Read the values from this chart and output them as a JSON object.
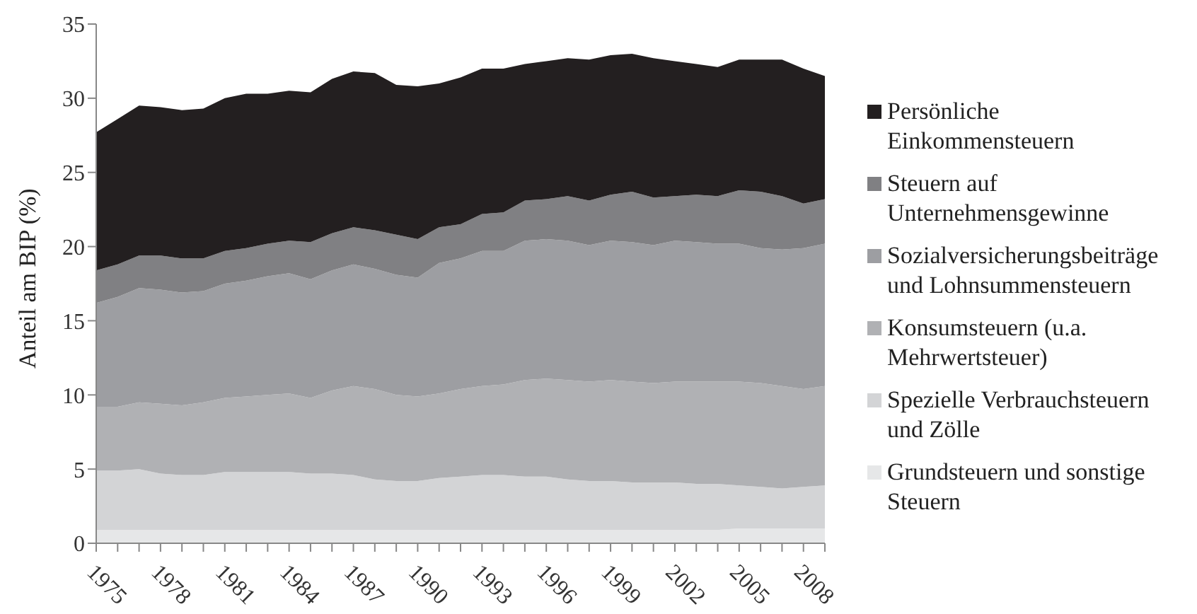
{
  "chart_data": {
    "type": "area",
    "stacked": true,
    "ylabel": "Anteil am BIP (%)",
    "legend": "right",
    "grid": false,
    "x": [
      1975,
      1976,
      1977,
      1978,
      1979,
      1980,
      1981,
      1982,
      1983,
      1984,
      1985,
      1986,
      1987,
      1988,
      1989,
      1990,
      1991,
      1992,
      1993,
      1994,
      1995,
      1996,
      1997,
      1998,
      1999,
      2000,
      2001,
      2002,
      2003,
      2004,
      2005,
      2006,
      2007,
      2008,
      2009
    ],
    "xlim": [
      1975,
      2009
    ],
    "xticks": [
      1975,
      {
        "value": 1976,
        "label": null
      },
      {
        "value": 1977,
        "label": null
      },
      1978,
      {
        "value": 1979,
        "label": null
      },
      {
        "value": 1980,
        "label": null
      },
      1981,
      {
        "value": 1982,
        "label": null
      },
      {
        "value": 1983,
        "label": null
      },
      1984,
      {
        "value": 1985,
        "label": null
      },
      {
        "value": 1986,
        "label": null
      },
      1987,
      {
        "value": 1988,
        "label": null
      },
      {
        "value": 1989,
        "label": null
      },
      1990,
      {
        "value": 1991,
        "label": null
      },
      {
        "value": 1992,
        "label": null
      },
      1993,
      {
        "value": 1994,
        "label": null
      },
      {
        "value": 1995,
        "label": null
      },
      1996,
      {
        "value": 1997,
        "label": null
      },
      {
        "value": 1998,
        "label": null
      },
      1999,
      {
        "value": 2000,
        "label": null
      },
      {
        "value": 2001,
        "label": null
      },
      2002,
      {
        "value": 2003,
        "label": null
      },
      {
        "value": 2004,
        "label": null
      },
      2005,
      {
        "value": 2006,
        "label": null
      },
      {
        "value": 2007,
        "label": null
      },
      2008,
      {
        "value": 2009,
        "label": null
      }
    ],
    "ylim": [
      0,
      35
    ],
    "yticks": [
      0,
      5,
      10,
      15,
      20,
      25,
      30,
      35
    ],
    "series": [
      {
        "name": "Grundsteuern und sonstige Steuern",
        "color": "#e6e7e8",
        "values": [
          0.9,
          0.9,
          0.9,
          0.9,
          0.9,
          0.9,
          0.9,
          0.9,
          0.9,
          0.9,
          0.9,
          0.9,
          0.9,
          0.9,
          0.9,
          0.9,
          0.9,
          0.9,
          0.9,
          0.9,
          0.9,
          0.9,
          0.9,
          0.9,
          0.9,
          0.9,
          0.9,
          0.9,
          0.9,
          0.9,
          1.0,
          1.0,
          1.0,
          1.0,
          1.0
        ]
      },
      {
        "name": "Spezielle Verbrauchsteuern und Zölle",
        "color": "#d3d4d6",
        "values": [
          4.0,
          4.0,
          4.1,
          3.8,
          3.7,
          3.7,
          3.9,
          3.9,
          3.9,
          3.9,
          3.8,
          3.8,
          3.7,
          3.4,
          3.3,
          3.3,
          3.5,
          3.6,
          3.7,
          3.7,
          3.6,
          3.6,
          3.4,
          3.3,
          3.3,
          3.2,
          3.2,
          3.2,
          3.1,
          3.1,
          2.9,
          2.8,
          2.7,
          2.8,
          2.9
        ]
      },
      {
        "name": "Konsumsteuern (u.a. Mehrwertsteuer)",
        "color": "#b0b1b4",
        "values": [
          4.3,
          4.3,
          4.5,
          4.7,
          4.7,
          4.9,
          5.0,
          5.1,
          5.2,
          5.3,
          5.1,
          5.6,
          6.0,
          6.1,
          5.8,
          5.7,
          5.7,
          5.9,
          6.0,
          6.1,
          6.5,
          6.6,
          6.7,
          6.7,
          6.8,
          6.8,
          6.7,
          6.8,
          6.9,
          6.9,
          7.0,
          7.0,
          6.9,
          6.6,
          6.7
        ]
      },
      {
        "name": "Sozialversicherungsbeiträge und Lohnsummensteuern",
        "color": "#9d9ea2",
        "values": [
          7.0,
          7.4,
          7.7,
          7.7,
          7.6,
          7.5,
          7.7,
          7.8,
          8.0,
          8.1,
          8.0,
          8.1,
          8.2,
          8.1,
          8.1,
          8.0,
          8.8,
          8.8,
          9.1,
          9.0,
          9.4,
          9.4,
          9.4,
          9.2,
          9.4,
          9.4,
          9.3,
          9.5,
          9.4,
          9.3,
          9.3,
          9.1,
          9.2,
          9.5,
          9.6
        ]
      },
      {
        "name": "Steuern auf Unternehmensgewinne",
        "color": "#808083",
        "values": [
          2.2,
          2.2,
          2.2,
          2.3,
          2.3,
          2.2,
          2.2,
          2.2,
          2.2,
          2.2,
          2.5,
          2.5,
          2.5,
          2.6,
          2.7,
          2.6,
          2.4,
          2.3,
          2.5,
          2.6,
          2.7,
          2.7,
          3.0,
          3.0,
          3.1,
          3.4,
          3.2,
          3.0,
          3.2,
          3.2,
          3.6,
          3.8,
          3.6,
          3.0,
          3.0
        ]
      },
      {
        "name": "Persönliche Einkommensteuern",
        "color": "#231f20",
        "values": [
          9.3,
          9.8,
          10.1,
          10.0,
          10.0,
          10.1,
          10.3,
          10.4,
          10.1,
          10.1,
          10.1,
          10.4,
          10.5,
          10.6,
          10.1,
          10.3,
          9.7,
          9.9,
          9.8,
          9.7,
          9.2,
          9.3,
          9.3,
          9.5,
          9.4,
          9.3,
          9.4,
          9.1,
          8.8,
          8.7,
          8.8,
          8.9,
          9.2,
          9.1,
          8.3
        ]
      }
    ]
  }
}
